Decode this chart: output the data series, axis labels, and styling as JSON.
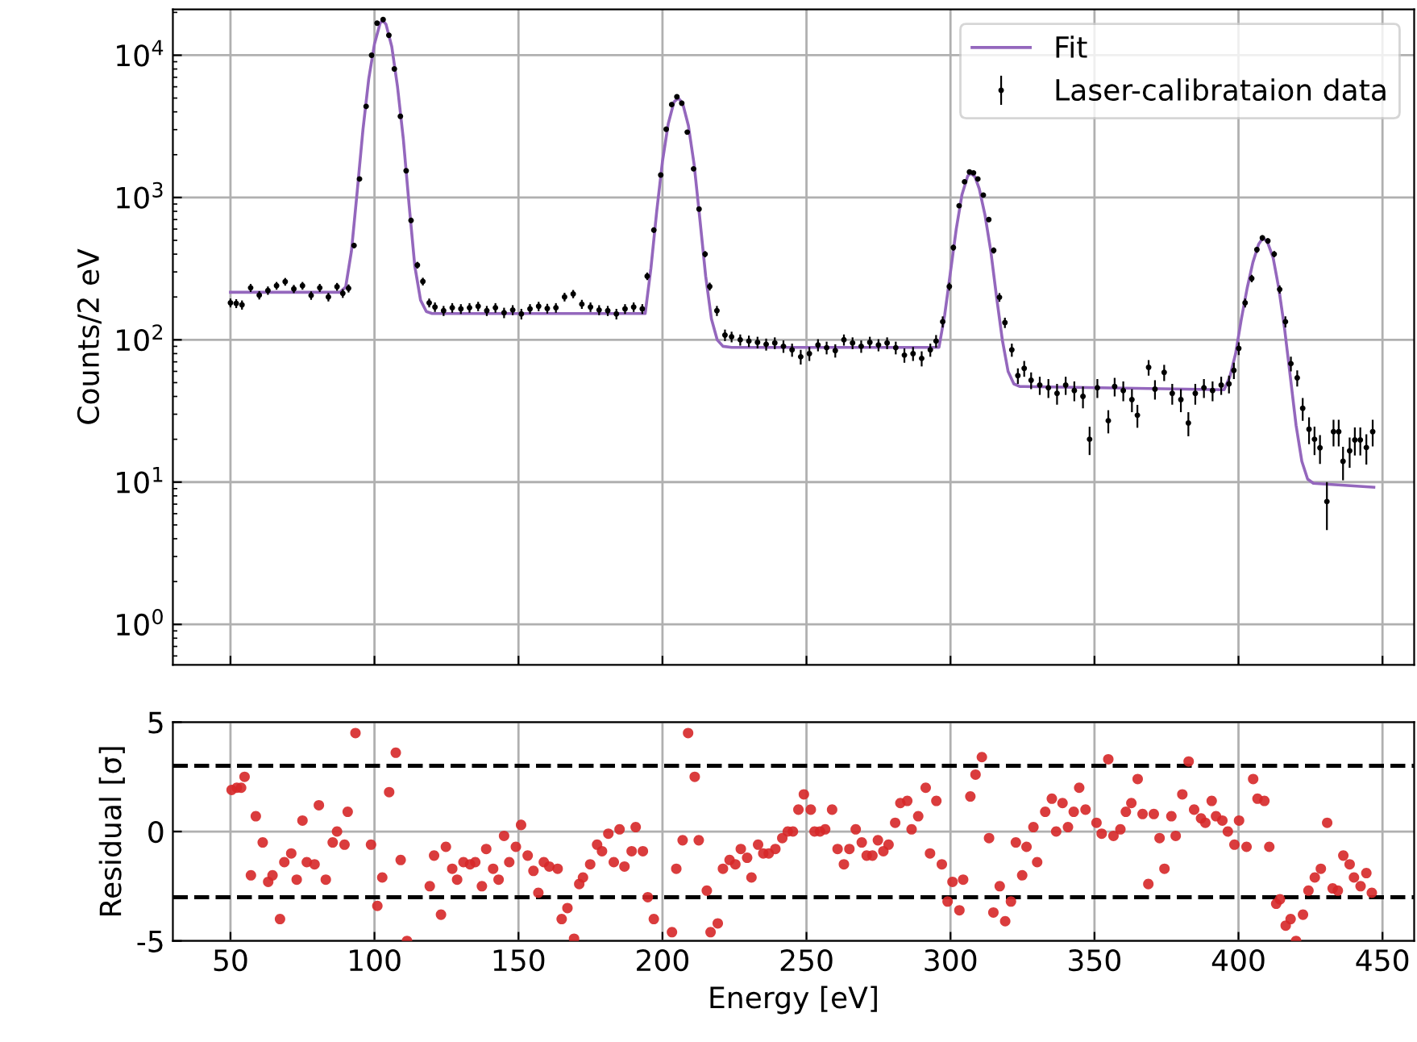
{
  "chart_data": [
    {
      "type": "line",
      "ylabel": "Counts/2 eV",
      "xlim": [
        30,
        461
      ],
      "xticks": [
        50,
        100,
        150,
        200,
        250,
        300,
        350,
        400,
        450
      ],
      "ylim": [
        0.52,
        21000
      ],
      "log": "y",
      "yticks": [
        {
          "value": 1,
          "label": "10$^{0}$"
        },
        {
          "value": 10,
          "label": "10$^{1}$"
        },
        {
          "value": 100,
          "label": "10$^{2}$"
        },
        {
          "value": 1000,
          "label": "10$^{3}$"
        },
        {
          "value": 10000,
          "label": "10$^{4}$"
        }
      ],
      "grid": true,
      "legend": "top right",
      "tick_labels": "y",
      "series": [
        {
          "name": "Fit",
          "color": "#9467bd",
          "x": [
            50,
            88,
            90,
            92,
            94,
            96,
            98,
            100,
            102,
            103,
            104,
            106,
            108,
            110,
            112,
            114,
            116,
            118,
            120,
            194,
            196,
            198,
            200,
            202,
            204,
            205.5,
            207,
            209,
            211,
            213,
            215,
            217,
            219,
            221,
            224,
            296,
            298,
            300,
            302,
            304,
            306,
            307,
            308.5,
            310,
            312,
            314,
            316,
            318,
            320,
            322,
            324,
            395,
            397,
            399,
            401,
            403,
            405,
            407,
            408.5,
            410,
            412,
            414,
            416,
            418,
            420,
            422,
            424,
            426,
            447
          ],
          "values": [
            216,
            216,
            235,
            420,
            1100,
            3000,
            6800,
            12000,
            16900,
            17400,
            16500,
            11500,
            6000,
            2600,
            900,
            330,
            190,
            158,
            153,
            153,
            320,
            800,
            1800,
            3300,
            4700,
            5000,
            4600,
            3200,
            1700,
            700,
            280,
            140,
            100,
            90,
            88.5,
            88.5,
            150,
            300,
            600,
            1050,
            1420,
            1480,
            1400,
            1150,
            750,
            420,
            200,
            100,
            60,
            49,
            47,
            44.6,
            55,
            80,
            140,
            230,
            350,
            470,
            520,
            490,
            380,
            230,
            120,
            55,
            25,
            14,
            10.5,
            9.8,
            9.2
          ]
        },
        {
          "name": "Laser-calibrataion data",
          "type": "scatter",
          "color": "#000000",
          "x": [
            50,
            52,
            54,
            57,
            60,
            63,
            66,
            69,
            72,
            75,
            78,
            81,
            84,
            87,
            89,
            91,
            92.9,
            94.8,
            97.1,
            99,
            100.9,
            103,
            105,
            106.9,
            109,
            111,
            112.7,
            114.9,
            116.8,
            119,
            121,
            124,
            127,
            130,
            133,
            136,
            139,
            142,
            145,
            148,
            151,
            154,
            157,
            160,
            163,
            166,
            169,
            172,
            175,
            178,
            181,
            184,
            187,
            190,
            193,
            194.7,
            197,
            199.4,
            201.3,
            203.2,
            205,
            206.7,
            208.6,
            210.8,
            212.7,
            214.8,
            216.4,
            218.9,
            221.7,
            224,
            227,
            230,
            233,
            236,
            239,
            242,
            245,
            248,
            251,
            254,
            257,
            260,
            263,
            266,
            269,
            272,
            275,
            278,
            281,
            284,
            287,
            290,
            293,
            295,
            297.3,
            299.6,
            301,
            303,
            304.9,
            306.6,
            308,
            309.5,
            311.4,
            313.3,
            315,
            317,
            318.9,
            321.3,
            323.4,
            325.6,
            328,
            331,
            334,
            337,
            340,
            343,
            346,
            348.3,
            351,
            354.8,
            357,
            360,
            363,
            364.9,
            368.8,
            371,
            374.2,
            377,
            380,
            382.6,
            385,
            388,
            391,
            394,
            396.7,
            398.4,
            400.1,
            402.3,
            404.6,
            406.4,
            408.3,
            410.2,
            412.4,
            414.3,
            416.3,
            418.2,
            420.4,
            422.3,
            424.5,
            426.4,
            428.3,
            430.7,
            433,
            434.8,
            436.3,
            438.6,
            440.4,
            442.3,
            444.4,
            446.6
          ],
          "values": [
            182,
            180,
            176,
            232,
            206,
            222,
            240,
            256,
            228,
            240,
            205,
            232,
            200,
            236,
            212,
            230,
            460,
            1350,
            4370,
            10000,
            16800,
            17800,
            13800,
            8000,
            3720,
            1540,
            690,
            335,
            257,
            182,
            170,
            160,
            168,
            165,
            168,
            172,
            160,
            168,
            155,
            162,
            152,
            165,
            172,
            166,
            168,
            200,
            210,
            178,
            170,
            162,
            160,
            152,
            165,
            170,
            165,
            280,
            590,
            1440,
            3020,
            4500,
            5100,
            4600,
            2880,
            1590,
            830,
            400,
            237,
            160,
            108,
            105,
            100,
            98,
            96,
            93,
            95,
            90,
            85,
            76,
            80,
            92,
            88,
            84,
            100,
            95,
            90,
            96,
            92,
            95,
            88,
            78,
            80,
            74,
            85,
            98,
            134,
            237,
            445,
            875,
            1290,
            1510,
            1490,
            1350,
            1040,
            700,
            425,
            199,
            132,
            85,
            56,
            63,
            52,
            48,
            46,
            42,
            48,
            44,
            40,
            20,
            46,
            27,
            47,
            44,
            38,
            29.5,
            64,
            45,
            59,
            42,
            38,
            26,
            42,
            46,
            44,
            48,
            49,
            61,
            87,
            182,
            270,
            430,
            520,
            495,
            400,
            226,
            134,
            68,
            54,
            33,
            23.5,
            20,
            17.4,
            7.3,
            22.6,
            22.6,
            14,
            16.6,
            19.8,
            19.8,
            17.5,
            22.6
          ],
          "errors": [
            13,
            13,
            13,
            15,
            14,
            15,
            15,
            16,
            15,
            15,
            14,
            15,
            14,
            15,
            15,
            15,
            21,
            37,
            66,
            100,
            null,
            null,
            null,
            89,
            61,
            39,
            26,
            18,
            16,
            13,
            13,
            13,
            13,
            13,
            13,
            13,
            13,
            13,
            13,
            13,
            13,
            13,
            13,
            13,
            13,
            14,
            14,
            13,
            13,
            13,
            13,
            13,
            13,
            13,
            13,
            17,
            24,
            38,
            55,
            67,
            71,
            68,
            54,
            40,
            29,
            20,
            15,
            13,
            10,
            9,
            9,
            9,
            9,
            9,
            9,
            9,
            9,
            9,
            9,
            9,
            9,
            9,
            9,
            9,
            9,
            9,
            9,
            9,
            9,
            9,
            9,
            9,
            9,
            10,
            12,
            15,
            21,
            30,
            36,
            39,
            39,
            37,
            32,
            26,
            21,
            14,
            11,
            9,
            7,
            8,
            7,
            7,
            7,
            7,
            7,
            7,
            7,
            4.5,
            7,
            5,
            7,
            7,
            7,
            5.4,
            8,
            7,
            7.7,
            7,
            7,
            5,
            7,
            7,
            7,
            7,
            7,
            8,
            9,
            13,
            16,
            21,
            23,
            22,
            20,
            15,
            12,
            8,
            7,
            6,
            5,
            4.5,
            4,
            2.7,
            4.8,
            4.8,
            3.7,
            4,
            4.4,
            4.4,
            4.2,
            4.8
          ]
        }
      ]
    },
    {
      "type": "scatter",
      "xlabel": "Energy [eV]",
      "ylabel": "Residual [σ]",
      "xlim": [
        30,
        461
      ],
      "xticks": [
        50,
        100,
        150,
        200,
        250,
        300,
        350,
        400,
        450
      ],
      "ylim": [
        -5,
        5
      ],
      "yticks": [
        -5,
        0,
        5
      ],
      "grid": true,
      "ref_lines": [
        {
          "axis": "y",
          "value": 3,
          "color": "#000000",
          "line_style": "dashed"
        },
        {
          "axis": "y",
          "value": -3,
          "color": "#000000",
          "line_style": "dashed"
        }
      ],
      "series": [
        {
          "color": "#d62728",
          "x": [
            50.4,
            52.2,
            53.7,
            54.9,
            57.1,
            58.8,
            61.2,
            63.1,
            64.6,
            67.2,
            68.7,
            71.1,
            73.0,
            75.0,
            76.5,
            79.2,
            80.7,
            83.1,
            85.5,
            87.0,
            89.6,
            90.7,
            93.4,
            98.8,
            101.0,
            102.7,
            105.1,
            107.4,
            109.1,
            111.3,
            119.2,
            120.7,
            123.1,
            124.8,
            127.0,
            128.7,
            130.9,
            133.2,
            135.0,
            137.3,
            138.8,
            141.2,
            143.1,
            145.0,
            146.8,
            149.1,
            150.9,
            153.2,
            155.2,
            156.9,
            158.8,
            160.7,
            163.6,
            165.0,
            167.0,
            169.3,
            171.1,
            172.4,
            174.9,
            177.3,
            179.0,
            181.2,
            183.1,
            185.1,
            186.8,
            189.3,
            190.7,
            193.2,
            194.9,
            197.0,
            203.3,
            204.8,
            207.0,
            208.9,
            211.2,
            212.6,
            215.4,
            216.7,
            219.2,
            221.0,
            223.3,
            225.3,
            227.2,
            229.4,
            230.9,
            233.2,
            235.0,
            236.9,
            239.2,
            241.6,
            243.5,
            245.3,
            247.2,
            249.1,
            251.5,
            252.8,
            254.7,
            256.5,
            258.9,
            260.8,
            263.0,
            264.9,
            267.1,
            269.2,
            270.9,
            272.9,
            274.8,
            276.7,
            278.5,
            280.8,
            282.6,
            285.0,
            286.5,
            288.8,
            291.4,
            292.9,
            295.1,
            297.0,
            299.0,
            300.7,
            303.1,
            304.4,
            306.9,
            308.7,
            310.9,
            313.4,
            314.9,
            317.1,
            319.0,
            321.0,
            322.7,
            324.9,
            326.4,
            328.8,
            330.1,
            332.9,
            335.2,
            336.7,
            338.9,
            340.8,
            342.8,
            344.7,
            346.9,
            350.7,
            352.5,
            354.8,
            356.6,
            359.0,
            360.9,
            362.8,
            365.0,
            366.7,
            368.7,
            370.6,
            372.6,
            374.3,
            376.7,
            378.2,
            380.5,
            382.7,
            384.6,
            387.0,
            388.5,
            390.7,
            392.2,
            394.4,
            396.3,
            398.6,
            400.2,
            402.8,
            405.1,
            406.6,
            409.0,
            410.7,
            413.1,
            414.4,
            416.4,
            418.1,
            420.0,
            422.4,
            424.3,
            426.5,
            428.6,
            430.8,
            432.7,
            434.5,
            436.4,
            438.6,
            440.1,
            442.4,
            444.4,
            446.3
          ],
          "values": [
            1.9,
            2.0,
            2.0,
            2.5,
            -2.0,
            0.7,
            -0.5,
            -2.3,
            -2.0,
            -4.0,
            -1.4,
            -1.0,
            -2.2,
            0.5,
            -1.4,
            -1.5,
            1.2,
            -2.2,
            -0.5,
            0.0,
            -0.6,
            0.9,
            4.5,
            -0.6,
            -3.4,
            -2.1,
            1.8,
            3.6,
            -1.3,
            -5.0,
            -2.5,
            -1.1,
            -3.8,
            -0.7,
            -1.7,
            -2.2,
            -1.4,
            -1.5,
            -1.4,
            -2.5,
            -0.8,
            -1.7,
            -2.2,
            -0.2,
            -1.4,
            -0.7,
            0.3,
            -1.1,
            -1.8,
            -2.8,
            -1.4,
            -1.6,
            -1.7,
            -4.0,
            -3.5,
            -4.9,
            -2.4,
            -2.1,
            -1.5,
            -0.6,
            -0.9,
            -0.1,
            -1.4,
            0.1,
            -1.6,
            -0.9,
            0.2,
            -0.9,
            -3.0,
            -4.0,
            -4.6,
            -1.7,
            -0.4,
            4.5,
            2.5,
            -0.4,
            -2.7,
            -4.6,
            -4.2,
            -1.7,
            -1.3,
            -1.5,
            -0.8,
            -1.2,
            -2.1,
            -0.6,
            -1.0,
            -1.0,
            -0.8,
            -0.3,
            0.0,
            0.0,
            1.0,
            1.7,
            1.0,
            0.0,
            0.0,
            0.1,
            1.0,
            -0.8,
            -1.5,
            -0.8,
            0.1,
            -0.5,
            -1.1,
            -1.1,
            -0.4,
            -0.9,
            -0.6,
            0.4,
            1.3,
            1.4,
            0.1,
            0.7,
            2.0,
            -1.0,
            1.4,
            -1.5,
            -3.2,
            -2.3,
            -3.6,
            -2.2,
            1.6,
            2.6,
            3.4,
            -0.3,
            -3.7,
            -2.5,
            -4.1,
            -3.2,
            -0.5,
            -2.0,
            -0.7,
            0.2,
            -1.4,
            0.9,
            1.5,
            0.0,
            1.3,
            0.2,
            0.9,
            2.0,
            1.0,
            0.4,
            -0.1,
            3.3,
            -0.2,
            0.1,
            0.9,
            1.3,
            2.4,
            0.8,
            -2.4,
            0.8,
            -0.3,
            -1.7,
            0.7,
            -0.2,
            1.7,
            3.2,
            1.0,
            0.6,
            0.4,
            1.4,
            0.7,
            0.5,
            0.0,
            -0.6,
            0.5,
            -0.7,
            2.4,
            1.5,
            1.4,
            -0.7,
            -3.3,
            -3.1,
            -4.3,
            -4.0,
            -5.0,
            -3.8,
            -2.7,
            -2.1,
            -1.7,
            0.4,
            -2.6,
            -2.7,
            -1.1,
            -1.5,
            -2.1,
            -2.5,
            -1.9,
            -2.8
          ]
        }
      ]
    }
  ]
}
